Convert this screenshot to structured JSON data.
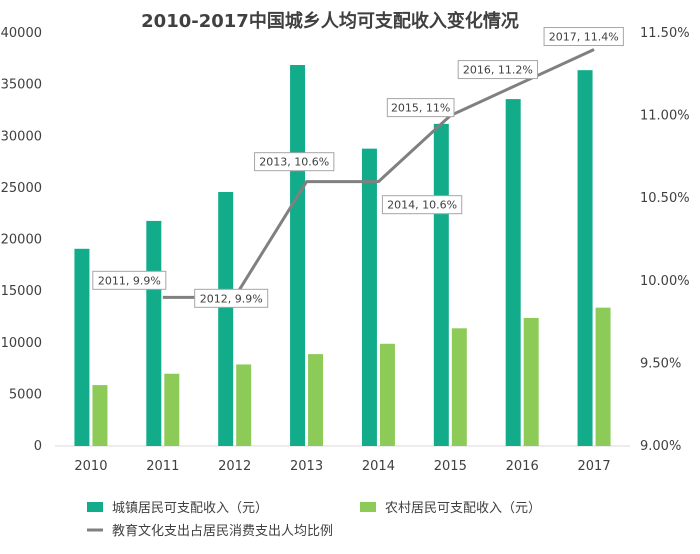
{
  "chart_data": {
    "type": "bar",
    "title": "2010-2017中国城乡人均可支配收入变化情况",
    "categories": [
      "2010",
      "2011",
      "2012",
      "2013",
      "2014",
      "2015",
      "2016",
      "2017"
    ],
    "series": [
      {
        "name": "城镇居民可支配收入（元）",
        "type": "bar",
        "axis": "left",
        "color": "#13AC8B",
        "values": [
          19100,
          21800,
          24600,
          36900,
          28800,
          31200,
          33600,
          36400
        ]
      },
      {
        "name": "农村居民可支配收入（元）",
        "type": "bar",
        "axis": "left",
        "color": "#8DCB58",
        "values": [
          5900,
          7000,
          7900,
          8900,
          9900,
          11400,
          12400,
          13400
        ]
      },
      {
        "name": "教育文化支出占居民消费支出人均比例",
        "type": "line",
        "axis": "right",
        "color": "#808080",
        "values": [
          9.9,
          9.9,
          10.6,
          10.6,
          11.0,
          11.2,
          11.4
        ],
        "x": [
          "2011",
          "2012",
          "2013",
          "2014",
          "2015",
          "2016",
          "2017"
        ],
        "labels": [
          "2011, 9.9%",
          "2012, 9.9%",
          "2013, 10.6%",
          "2014, 10.6%",
          "2015, 11%",
          "2016, 11.2%",
          "2017, 11.4%"
        ]
      }
    ],
    "y_left": {
      "ylim": [
        0,
        40000
      ],
      "ticks": [
        "0",
        "5000",
        "10000",
        "15000",
        "20000",
        "25000",
        "30000",
        "35000",
        "40000"
      ]
    },
    "y_right": {
      "ylim": [
        9.0,
        11.5
      ],
      "ticks": [
        "9.00%",
        "9.50%",
        "10.00%",
        "10.50%",
        "11.00%",
        "11.50%"
      ]
    },
    "grid": false,
    "legend": "bottom"
  }
}
